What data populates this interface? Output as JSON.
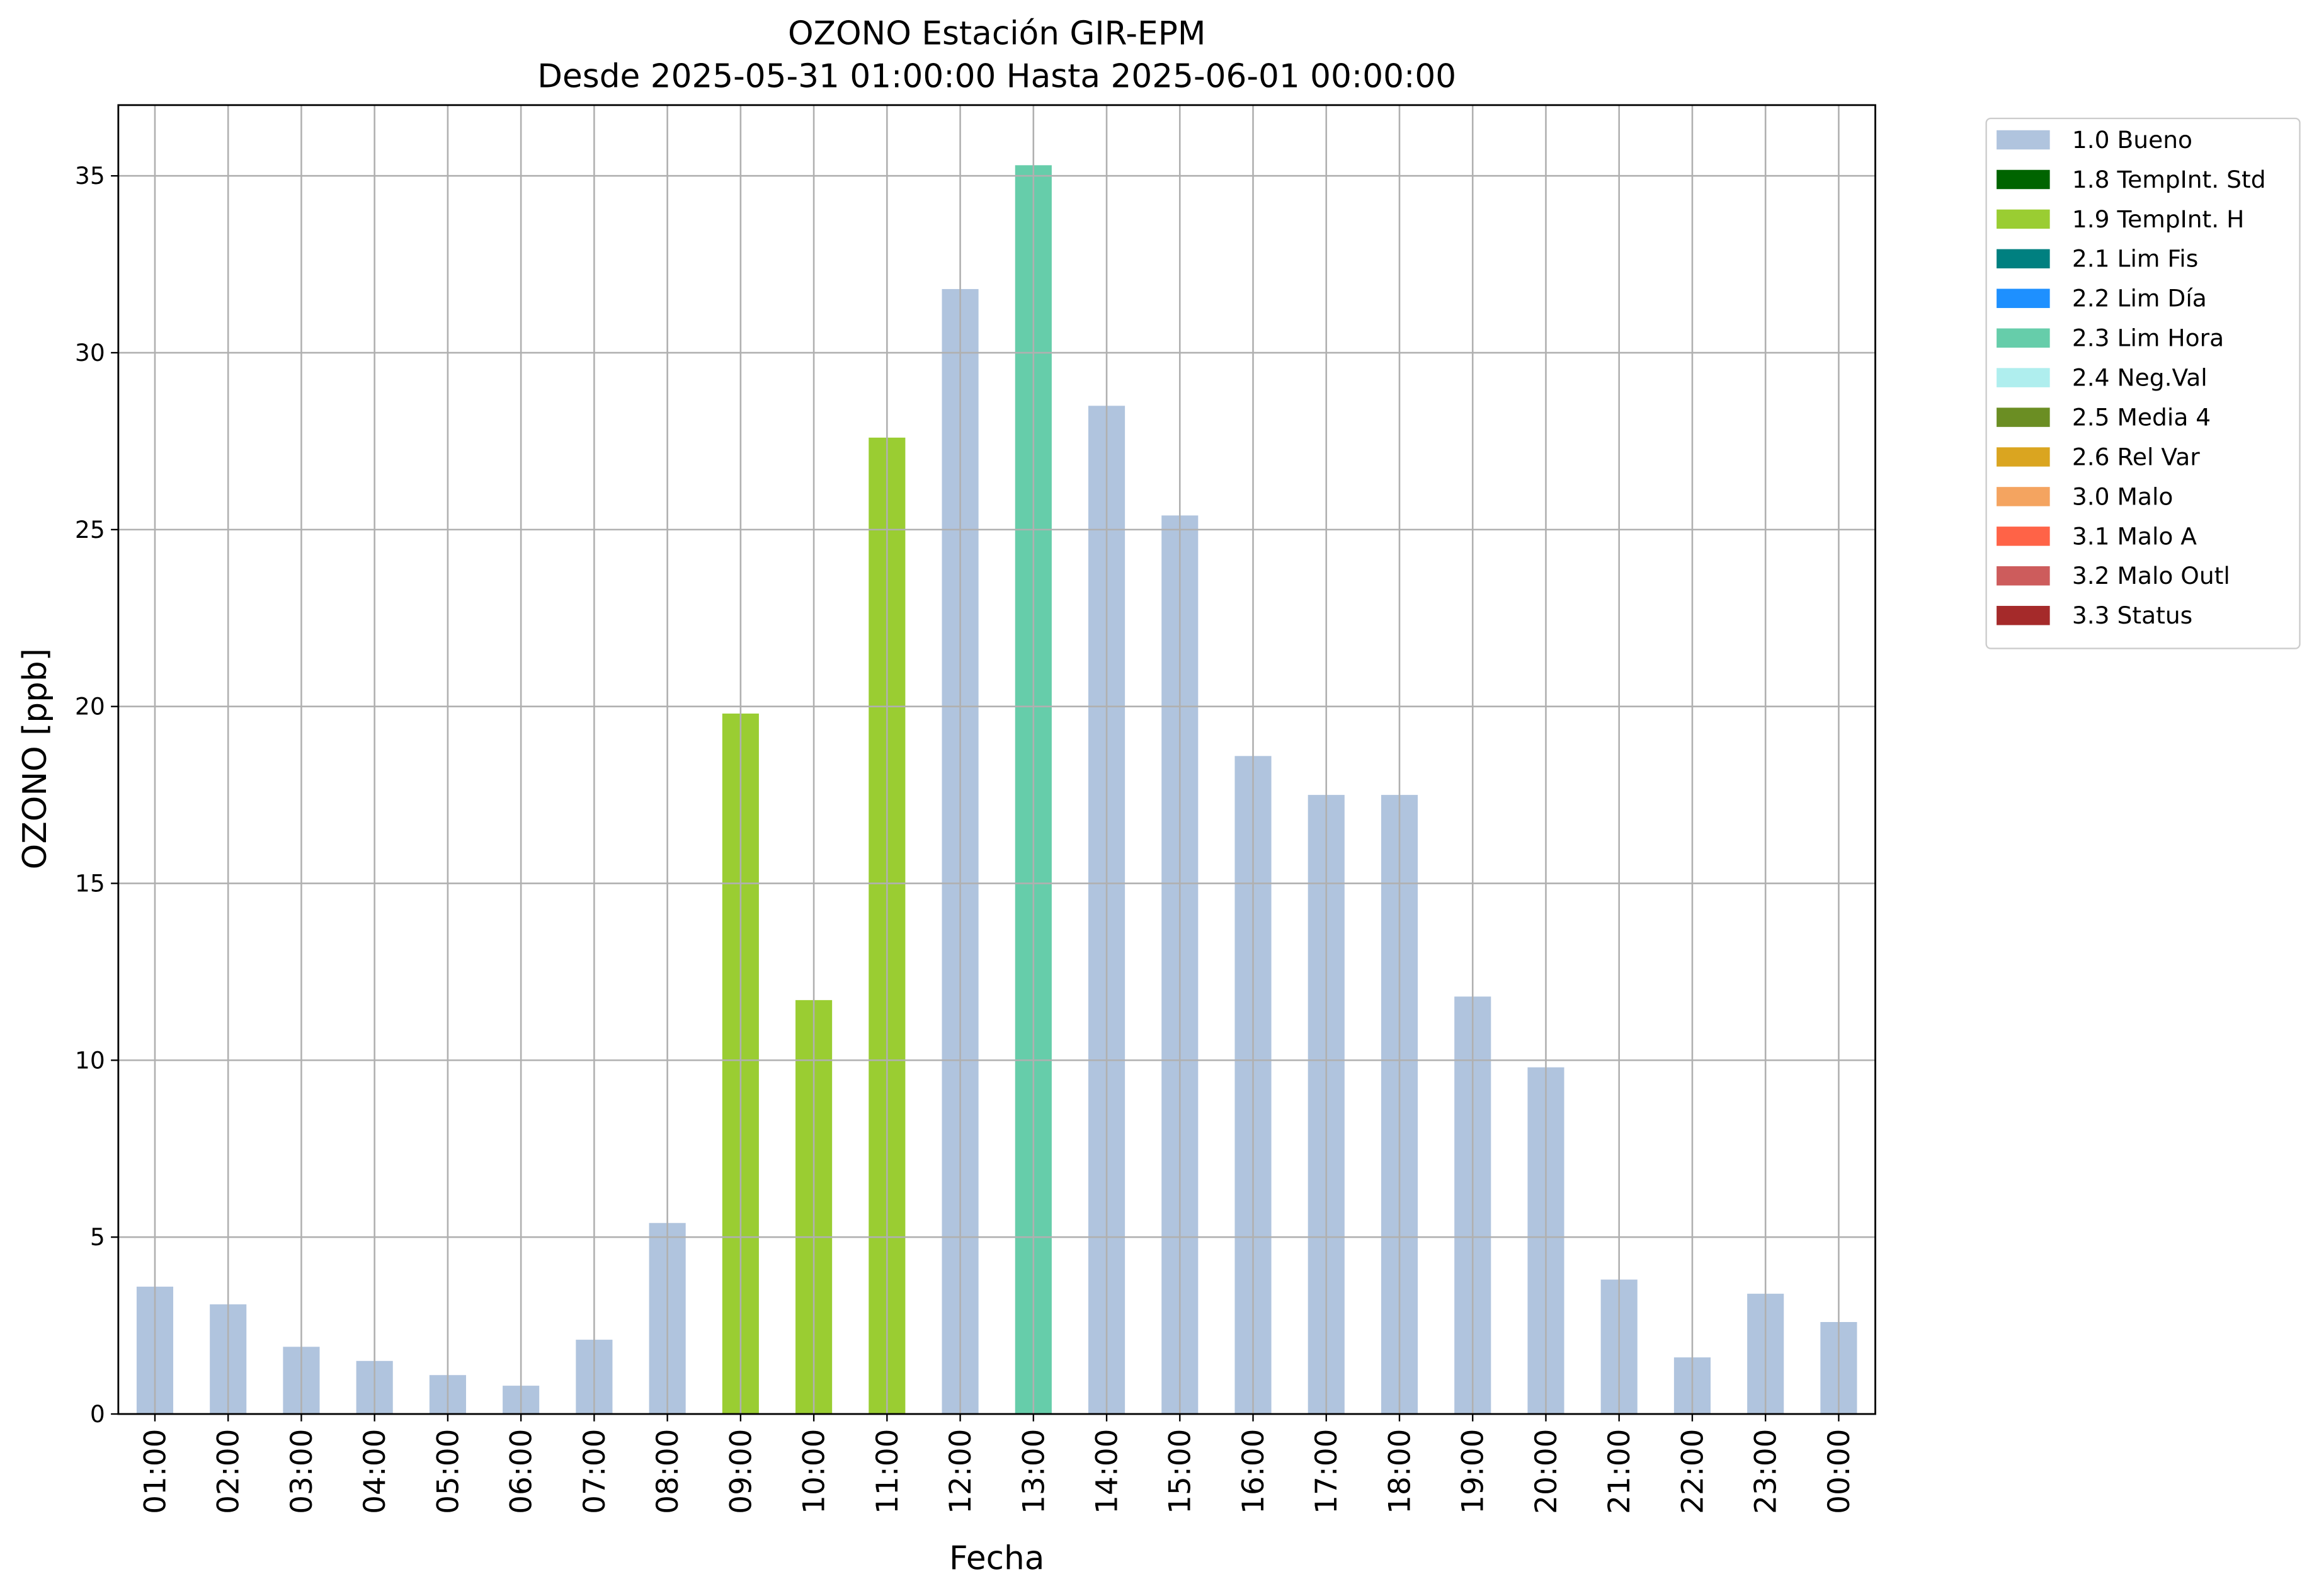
{
  "chart_data": {
    "type": "bar",
    "title": "OZONO Estación GIR-EPM",
    "subtitle": "Desde 2025-05-31 01:00:00 Hasta 2025-06-01 00:00:00",
    "x_label": "Fecha",
    "y_label": "OZONO [ppb]",
    "categories": [
      "01:00",
      "02:00",
      "03:00",
      "04:00",
      "05:00",
      "06:00",
      "07:00",
      "08:00",
      "09:00",
      "10:00",
      "11:00",
      "12:00",
      "13:00",
      "14:00",
      "15:00",
      "16:00",
      "17:00",
      "18:00",
      "19:00",
      "20:00",
      "21:00",
      "22:00",
      "23:00",
      "00:00"
    ],
    "series": [
      {
        "name": "1.0 Bueno",
        "color": "#b0c4de",
        "values": [
          3.6,
          3.1,
          1.9,
          1.5,
          1.1,
          0.8,
          2.1,
          5.4,
          null,
          null,
          null,
          31.8,
          null,
          28.5,
          25.4,
          18.6,
          17.5,
          17.5,
          11.8,
          9.8,
          3.8,
          1.6,
          3.4,
          2.6
        ]
      },
      {
        "name": "1.8 TempInt. Std",
        "color": "#006400",
        "values": [
          null,
          null,
          null,
          null,
          null,
          null,
          null,
          null,
          null,
          null,
          null,
          null,
          null,
          null,
          null,
          null,
          null,
          null,
          null,
          null,
          null,
          null,
          null,
          null
        ]
      },
      {
        "name": "1.9 TempInt. H",
        "color": "#9acd32",
        "values": [
          null,
          null,
          null,
          null,
          null,
          null,
          null,
          null,
          19.8,
          11.7,
          27.6,
          null,
          null,
          null,
          null,
          null,
          null,
          null,
          null,
          null,
          null,
          null,
          null,
          null
        ]
      },
      {
        "name": "2.1 Lim Fis",
        "color": "#008080",
        "values": [
          null,
          null,
          null,
          null,
          null,
          null,
          null,
          null,
          null,
          null,
          null,
          null,
          null,
          null,
          null,
          null,
          null,
          null,
          null,
          null,
          null,
          null,
          null,
          null
        ]
      },
      {
        "name": "2.2 Lim Día",
        "color": "#1e90ff",
        "values": [
          null,
          null,
          null,
          null,
          null,
          null,
          null,
          null,
          null,
          null,
          null,
          null,
          null,
          null,
          null,
          null,
          null,
          null,
          null,
          null,
          null,
          null,
          null,
          null
        ]
      },
      {
        "name": "2.3 Lim Hora",
        "color": "#66cdaa",
        "values": [
          null,
          null,
          null,
          null,
          null,
          null,
          null,
          null,
          null,
          null,
          null,
          null,
          35.3,
          null,
          null,
          null,
          null,
          null,
          null,
          null,
          null,
          null,
          null,
          null
        ]
      },
      {
        "name": "2.4 Neg.Val",
        "color": "#afeeee",
        "values": [
          null,
          null,
          null,
          null,
          null,
          null,
          null,
          null,
          null,
          null,
          null,
          null,
          null,
          null,
          null,
          null,
          null,
          null,
          null,
          null,
          null,
          null,
          null,
          null
        ]
      },
      {
        "name": "2.5 Media 4",
        "color": "#6b8e23",
        "values": [
          null,
          null,
          null,
          null,
          null,
          null,
          null,
          null,
          null,
          null,
          null,
          null,
          null,
          null,
          null,
          null,
          null,
          null,
          null,
          null,
          null,
          null,
          null,
          null
        ]
      },
      {
        "name": "2.6 Rel Var",
        "color": "#daa520",
        "values": [
          null,
          null,
          null,
          null,
          null,
          null,
          null,
          null,
          null,
          null,
          null,
          null,
          null,
          null,
          null,
          null,
          null,
          null,
          null,
          null,
          null,
          null,
          null,
          null
        ]
      },
      {
        "name": "3.0 Malo",
        "color": "#f4a460",
        "values": [
          null,
          null,
          null,
          null,
          null,
          null,
          null,
          null,
          null,
          null,
          null,
          null,
          null,
          null,
          null,
          null,
          null,
          null,
          null,
          null,
          null,
          null,
          null,
          null
        ]
      },
      {
        "name": "3.1 Malo A",
        "color": "#ff6347",
        "values": [
          null,
          null,
          null,
          null,
          null,
          null,
          null,
          null,
          null,
          null,
          null,
          null,
          null,
          null,
          null,
          null,
          null,
          null,
          null,
          null,
          null,
          null,
          null,
          null
        ]
      },
      {
        "name": "3.2 Malo Outl",
        "color": "#cd5c5c",
        "values": [
          null,
          null,
          null,
          null,
          null,
          null,
          null,
          null,
          null,
          null,
          null,
          null,
          null,
          null,
          null,
          null,
          null,
          null,
          null,
          null,
          null,
          null,
          null,
          null
        ]
      },
      {
        "name": "3.3 Status",
        "color": "#a52a2a",
        "values": [
          null,
          null,
          null,
          null,
          null,
          null,
          null,
          null,
          null,
          null,
          null,
          null,
          null,
          null,
          null,
          null,
          null,
          null,
          null,
          null,
          null,
          null,
          null,
          null
        ]
      }
    ],
    "ylim": [
      0,
      37
    ],
    "yticks": [
      0,
      5,
      10,
      15,
      20,
      25,
      30,
      35
    ],
    "grid": true,
    "legend": "outside upper right"
  }
}
